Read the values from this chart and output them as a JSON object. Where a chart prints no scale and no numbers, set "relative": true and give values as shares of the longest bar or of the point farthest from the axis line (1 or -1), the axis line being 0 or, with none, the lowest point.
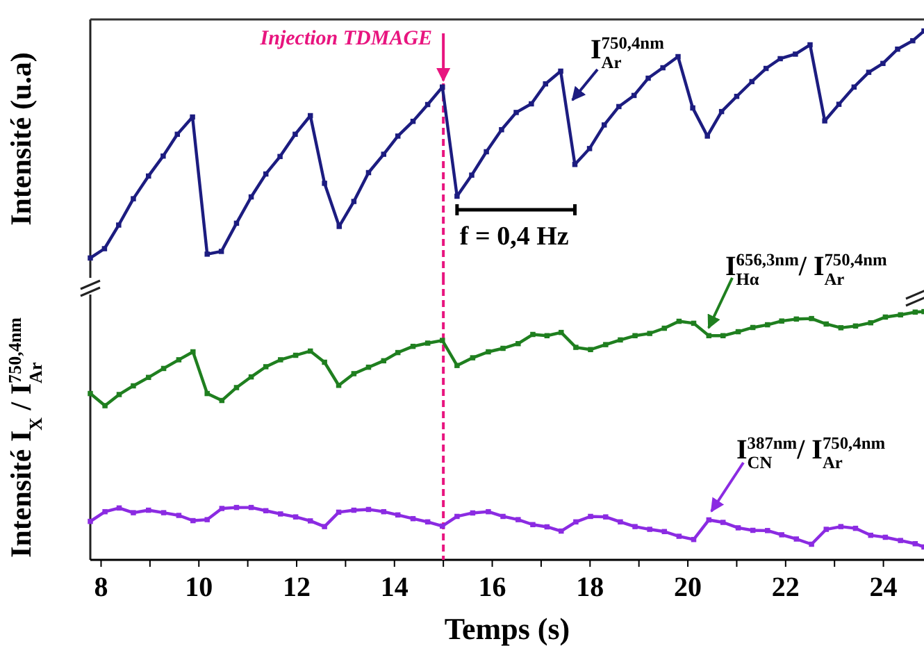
{
  "chart_data": [
    {
      "type": "line",
      "ylabel": "Intensité (u.a)",
      "relative": true,
      "xlim": [
        7.78,
        24.83
      ],
      "tick_labels": false,
      "marker": "square",
      "line_style": "solid",
      "annotations": [
        "f = 0,4 Hz"
      ],
      "ref_lines": [
        {
          "axis": "x",
          "value": 15,
          "label": "Injection TDMAGE",
          "color": "#e8157f",
          "line_style": "dashed"
        }
      ],
      "x": [
        7.78,
        8.07,
        8.36,
        8.66,
        8.97,
        9.27,
        9.56,
        9.87,
        10.17,
        10.46,
        10.77,
        11.07,
        11.37,
        11.66,
        11.97,
        12.28,
        12.57,
        12.87,
        13.17,
        13.47,
        13.78,
        14.07,
        14.38,
        14.68,
        14.98,
        15.28,
        15.58,
        15.88,
        16.19,
        16.49,
        16.8,
        17.09,
        17.4,
        17.69,
        17.99,
        18.29,
        18.59,
        18.9,
        19.19,
        19.49,
        19.8,
        20.1,
        20.4,
        20.69,
        21,
        21.31,
        21.6,
        21.89,
        22.2,
        22.5,
        22.8,
        23.09,
        23.4,
        23.7,
        23.99,
        24.29,
        24.6,
        24.83
      ],
      "series": [
        {
          "name": "I$_{Ar}$$^{750,4nm}$",
          "color": "#1c1c80",
          "values": [
            0,
            0.041,
            0.145,
            0.261,
            0.361,
            0.449,
            0.545,
            0.621,
            0.017,
            0.029,
            0.153,
            0.269,
            0.37,
            0.447,
            0.545,
            0.627,
            0.329,
            0.139,
            0.249,
            0.376,
            0.457,
            0.537,
            0.602,
            0.676,
            0.753,
            0.272,
            0.365,
            0.468,
            0.565,
            0.641,
            0.679,
            0.767,
            0.823,
            0.412,
            0.482,
            0.586,
            0.667,
            0.716,
            0.792,
            0.838,
            0.887,
            0.661,
            0.537,
            0.645,
            0.712,
            0.777,
            0.835,
            0.878,
            0.898,
            0.939,
            0.604,
            0.677,
            0.753,
            0.818,
            0.857,
            0.92,
            0.957,
            1
          ]
        }
      ]
    },
    {
      "type": "line",
      "ylabel": "Intensité I$_{X}$ / I$_{Ar}$$^{750,4nm}$",
      "xlabel": "Temps (s)",
      "relative": true,
      "xlim": [
        7.78,
        24.83
      ],
      "tick_labels": "x",
      "marker": "square",
      "line_style": "solid",
      "xticks": [
        8,
        {
          "value": 9,
          "label": null
        },
        10,
        {
          "value": 11,
          "label": null
        },
        12,
        {
          "value": 13,
          "label": null
        },
        14,
        {
          "value": 15,
          "label": null
        },
        16,
        {
          "value": 17,
          "label": null
        },
        18,
        {
          "value": 19,
          "label": null
        },
        20,
        {
          "value": 21,
          "label": null
        },
        22,
        {
          "value": 23,
          "label": null
        },
        24
      ],
      "ref_lines": [
        {
          "axis": "x",
          "value": 15,
          "color": "#e8157f",
          "line_style": "dashed"
        }
      ],
      "x": [
        7.78,
        8.08,
        8.37,
        8.66,
        8.97,
        9.28,
        9.59,
        9.88,
        10.17,
        10.47,
        10.77,
        11.07,
        11.37,
        11.67,
        11.98,
        12.28,
        12.57,
        12.86,
        13.17,
        13.47,
        13.78,
        14.07,
        14.38,
        14.68,
        14.98,
        15.28,
        15.6,
        15.92,
        16.22,
        16.53,
        16.83,
        17.12,
        17.41,
        17.71,
        18.01,
        18.32,
        18.62,
        18.92,
        19.22,
        19.52,
        19.82,
        20.12,
        20.43,
        20.72,
        21.03,
        21.33,
        21.63,
        21.92,
        22.22,
        22.53,
        22.83,
        23.13,
        23.43,
        23.74,
        24.04,
        24.35,
        24.65,
        24.83
      ],
      "series": [
        {
          "name": "I$_{Hα}$$^{656,3nm}$/ I$_{Ar}$$^{750,4nm}$",
          "color": "#1f7f1f",
          "values": [
            0.67,
            0.621,
            0.666,
            0.701,
            0.735,
            0.771,
            0.806,
            0.838,
            0.67,
            0.642,
            0.694,
            0.737,
            0.778,
            0.806,
            0.824,
            0.841,
            0.796,
            0.703,
            0.75,
            0.776,
            0.802,
            0.835,
            0.86,
            0.873,
            0.884,
            0.783,
            0.814,
            0.838,
            0.852,
            0.871,
            0.908,
            0.903,
            0.916,
            0.856,
            0.847,
            0.867,
            0.886,
            0.903,
            0.912,
            0.933,
            0.961,
            0.953,
            0.903,
            0.903,
            0.919,
            0.936,
            0.947,
            0.962,
            0.97,
            0.972,
            0.95,
            0.935,
            0.942,
            0.955,
            0.978,
            0.987,
            0.998,
            1
          ]
        },
        {
          "name": "I$_{CN}$$^{387nm}$/ I$_{Ar}$$^{750,4nm}$",
          "color": "#8b2be2",
          "values": [
            0.155,
            0.194,
            0.209,
            0.19,
            0.2,
            0.19,
            0.179,
            0.158,
            0.162,
            0.207,
            0.211,
            0.211,
            0.198,
            0.185,
            0.173,
            0.157,
            0.134,
            0.192,
            0.2,
            0.203,
            0.194,
            0.181,
            0.166,
            0.153,
            0.136,
            0.175,
            0.189,
            0.194,
            0.175,
            0.162,
            0.142,
            0.133,
            0.116,
            0.153,
            0.175,
            0.173,
            0.153,
            0.134,
            0.123,
            0.114,
            0.095,
            0.082,
            0.161,
            0.151,
            0.129,
            0.119,
            0.118,
            0.101,
            0.084,
            0.063,
            0.123,
            0.134,
            0.127,
            0.099,
            0.091,
            0.078,
            0.065,
            0.052
          ]
        }
      ]
    }
  ]
}
